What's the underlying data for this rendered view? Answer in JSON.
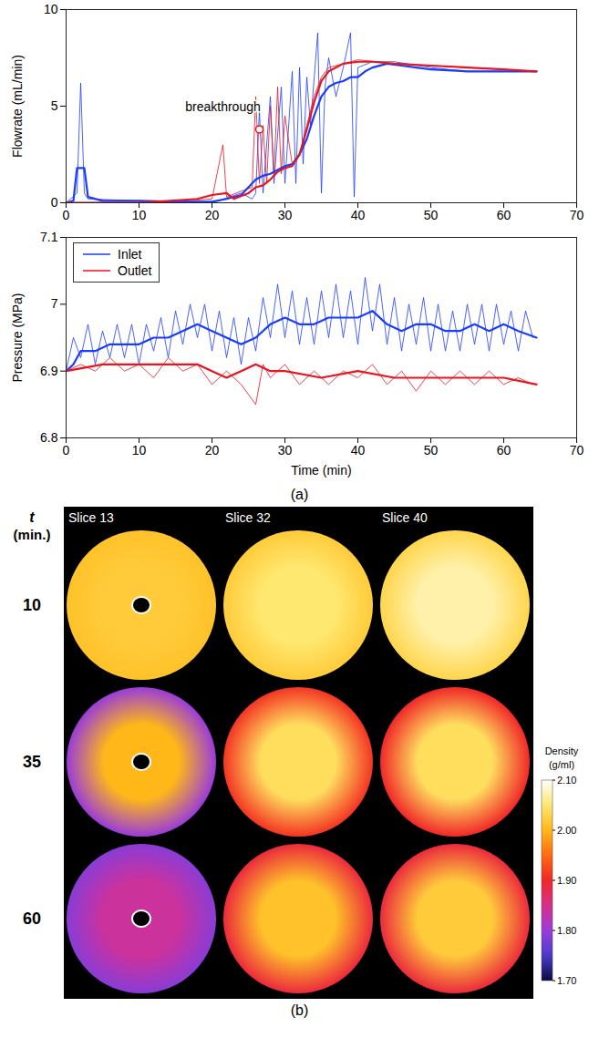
{
  "chart_data": [
    {
      "type": "line",
      "ylabel": "Flowrate (mL/min)",
      "xlim": [
        0,
        70
      ],
      "xticks": [
        0,
        10,
        20,
        30,
        40,
        50,
        60,
        70
      ],
      "ylim": [
        0,
        10
      ],
      "yticks": [
        0,
        5,
        10
      ],
      "series": [
        {
          "color": "#1a3cff",
          "line_style": "thin",
          "x": [
            0,
            1.5,
            2,
            2.5,
            3,
            10,
            20,
            24,
            25.5,
            26,
            26.5,
            27,
            28,
            28.5,
            29.5,
            30,
            31,
            31.5,
            32,
            32.5,
            33,
            33.5,
            34.5,
            35,
            35.5,
            36,
            37,
            38,
            39,
            39.5,
            40,
            42,
            45,
            50,
            55,
            60,
            64.5
          ],
          "values": [
            0,
            0.5,
            6.2,
            0.5,
            0.2,
            0.1,
            0,
            0.5,
            0.2,
            0.5,
            4.8,
            0.5,
            5.5,
            1,
            6,
            1,
            6.8,
            1,
            7,
            2,
            6.5,
            4,
            8.8,
            0.5,
            6,
            7.5,
            5.5,
            7,
            8.8,
            0.3,
            7,
            7.3,
            7.3,
            7,
            6.8,
            6.8,
            6.8
          ]
        },
        {
          "color": "#e8141e",
          "line_style": "thin",
          "x": [
            0,
            15,
            20,
            21.5,
            22,
            24,
            25.5,
            26,
            26.5,
            27,
            27.5,
            28,
            28.5,
            29,
            29.5,
            30,
            31,
            32,
            33,
            34,
            35,
            36,
            38,
            40,
            45,
            50,
            60,
            64.5
          ],
          "values": [
            0,
            0.05,
            0.2,
            3.0,
            0.3,
            0.6,
            0.8,
            5.5,
            1,
            4,
            1,
            5,
            1.5,
            6,
            1.5,
            4.5,
            2,
            2.5,
            4,
            5.5,
            6.5,
            7,
            7.2,
            7.4,
            7.2,
            7.1,
            6.9,
            6.8
          ]
        },
        {
          "color": "#1a3cff",
          "line_style": "thick",
          "x": [
            0,
            1,
            1.5,
            2.5,
            3,
            5,
            10,
            15,
            20,
            22,
            24,
            25,
            26,
            27,
            28,
            29,
            30,
            31,
            32,
            33,
            34,
            35,
            36,
            37,
            38,
            39,
            40,
            41,
            42,
            44,
            46,
            48,
            50,
            55,
            60,
            64.5
          ],
          "values": [
            0,
            0.1,
            1.8,
            1.8,
            0.3,
            0.1,
            0.1,
            0.05,
            0.05,
            0.2,
            0.4,
            0.8,
            1.2,
            1.4,
            1.5,
            1.7,
            1.9,
            2.0,
            2.5,
            3.3,
            4.5,
            5.5,
            6.0,
            6.2,
            6.3,
            6.5,
            6.5,
            6.8,
            7.0,
            7.2,
            7.1,
            7.0,
            6.9,
            6.8,
            6.8,
            6.8
          ]
        },
        {
          "color": "#e8141e",
          "line_style": "thick",
          "x": [
            0,
            10,
            18,
            20,
            22,
            23,
            25,
            26,
            27,
            28,
            29,
            30,
            31,
            32,
            33,
            34,
            35,
            36,
            38,
            40,
            42,
            45,
            50,
            55,
            60,
            64.5
          ],
          "values": [
            0,
            0,
            0.2,
            0.4,
            0.5,
            0.2,
            0.5,
            0.8,
            0.9,
            1.2,
            1.6,
            1.8,
            1.9,
            2.5,
            3.8,
            5.2,
            6.3,
            6.8,
            7.2,
            7.3,
            7.3,
            7.2,
            7.1,
            7.0,
            6.9,
            6.8
          ]
        }
      ],
      "annotations": [
        {
          "text": "breakthrough",
          "x": 26.5,
          "y": 3.8,
          "marker": "circle",
          "color": "#e8141e"
        }
      ]
    },
    {
      "type": "line",
      "xlabel": "Time (min)",
      "ylabel": "Pressure (MPa)",
      "xlim": [
        0,
        70
      ],
      "xticks": [
        0,
        10,
        20,
        30,
        40,
        50,
        60,
        70
      ],
      "ylim": [
        6.8,
        7.1
      ],
      "yticks": [
        6.8,
        6.9,
        7,
        7.1
      ],
      "legend": "top-left",
      "caption": "(a)",
      "series": [
        {
          "color": "#1a3cff",
          "line_style": "thin",
          "x": [
            0,
            1,
            2,
            3,
            4,
            5,
            6,
            7,
            8,
            9,
            10,
            11,
            12,
            13,
            14,
            15,
            16,
            17,
            18,
            19,
            20,
            21,
            22,
            23,
            24,
            25,
            26,
            27,
            28,
            29,
            30,
            31,
            32,
            33,
            34,
            35,
            36,
            37,
            38,
            39,
            40,
            41,
            42,
            43,
            44,
            45,
            46,
            47,
            48,
            49,
            50,
            51,
            52,
            53,
            54,
            55,
            56,
            57,
            58,
            59,
            60,
            61,
            62,
            63,
            64
          ],
          "values": [
            6.9,
            6.95,
            6.92,
            6.97,
            6.91,
            6.96,
            6.92,
            6.97,
            6.92,
            6.97,
            6.91,
            6.97,
            6.93,
            6.98,
            6.92,
            6.99,
            6.94,
            7.0,
            6.95,
            7.0,
            6.93,
            6.99,
            6.92,
            6.98,
            6.91,
            6.98,
            6.93,
            7.01,
            6.95,
            7.03,
            6.95,
            7.02,
            6.94,
            7.01,
            6.94,
            7.02,
            6.95,
            7.03,
            6.95,
            7.02,
            6.94,
            7.04,
            6.96,
            7.03,
            6.94,
            7.01,
            6.93,
            7.0,
            6.94,
            7.01,
            6.93,
            7.0,
            6.93,
            6.99,
            6.93,
            7.0,
            6.94,
            7.0,
            6.93,
            7.0,
            6.94,
            6.99,
            6.93,
            6.99,
            6.95
          ]
        },
        {
          "color": "#e8141e",
          "line_style": "thin",
          "x": [
            0,
            2,
            4,
            6,
            8,
            10,
            12,
            14,
            16,
            18,
            20,
            22,
            24,
            26,
            27,
            28,
            30,
            32,
            34,
            36,
            38,
            40,
            42,
            44,
            46,
            48,
            50,
            52,
            54,
            56,
            58,
            60,
            62,
            64
          ],
          "values": [
            6.9,
            6.91,
            6.9,
            6.92,
            6.9,
            6.91,
            6.89,
            6.92,
            6.9,
            6.91,
            6.88,
            6.9,
            6.88,
            6.85,
            6.91,
            6.89,
            6.91,
            6.88,
            6.9,
            6.88,
            6.9,
            6.89,
            6.91,
            6.88,
            6.9,
            6.87,
            6.9,
            6.88,
            6.9,
            6.88,
            6.9,
            6.88,
            6.89,
            6.88
          ]
        },
        {
          "name": "Inlet",
          "color": "#1a3cff",
          "line_style": "thick",
          "x": [
            0,
            1,
            2,
            4,
            6,
            8,
            10,
            12,
            14,
            16,
            18,
            20,
            22,
            24,
            26,
            28,
            30,
            32,
            34,
            36,
            38,
            40,
            42,
            44,
            46,
            48,
            50,
            52,
            54,
            56,
            58,
            60,
            62,
            64.5
          ],
          "values": [
            6.9,
            6.91,
            6.93,
            6.93,
            6.94,
            6.94,
            6.94,
            6.95,
            6.95,
            6.96,
            6.97,
            6.96,
            6.95,
            6.94,
            6.95,
            6.97,
            6.98,
            6.97,
            6.97,
            6.98,
            6.98,
            6.98,
            6.99,
            6.97,
            6.96,
            6.97,
            6.97,
            6.96,
            6.96,
            6.97,
            6.96,
            6.97,
            6.96,
            6.95
          ]
        },
        {
          "name": "Outlet",
          "color": "#e8141e",
          "line_style": "thick",
          "x": [
            0,
            5,
            10,
            15,
            18,
            20,
            22,
            24,
            26,
            28,
            30,
            35,
            40,
            45,
            50,
            55,
            60,
            64.5
          ],
          "values": [
            6.9,
            6.91,
            6.91,
            6.91,
            6.91,
            6.9,
            6.89,
            6.9,
            6.91,
            6.9,
            6.9,
            6.89,
            6.9,
            6.89,
            6.89,
            6.89,
            6.89,
            6.88
          ]
        }
      ]
    },
    {
      "type": "heatmap",
      "caption": "(b)",
      "columns": [
        "Slice 13",
        "Slice 32",
        "Slice 40"
      ],
      "row_title": "t (min.)",
      "rows": [
        10,
        35,
        60
      ],
      "cells": [
        [
          {
            "center": 2.02,
            "edge": 2.01
          },
          {
            "center": 2.05,
            "edge": 2.02
          },
          {
            "center": 2.07,
            "edge": 2.03
          }
        ],
        [
          {
            "center": 2.0,
            "edge": 1.8
          },
          {
            "center": 2.04,
            "edge": 1.91
          },
          {
            "center": 2.04,
            "edge": 1.9
          }
        ],
        [
          {
            "center": 1.84,
            "edge": 1.79
          },
          {
            "center": 2.01,
            "edge": 1.89
          },
          {
            "center": 2.02,
            "edge": 1.89
          }
        ]
      ],
      "colorbar": {
        "title": "Density (g/ml)",
        "range": [
          1.7,
          2.1
        ],
        "ticks": [
          {
            "value": 1.7,
            "label": "1.70"
          },
          {
            "value": 1.8,
            "label": "1.80"
          },
          {
            "value": 1.9,
            "label": "1.90"
          },
          {
            "value": 2.0,
            "label": "2.00"
          },
          {
            "value": 2.1,
            "label": "2.10"
          }
        ]
      }
    }
  ]
}
